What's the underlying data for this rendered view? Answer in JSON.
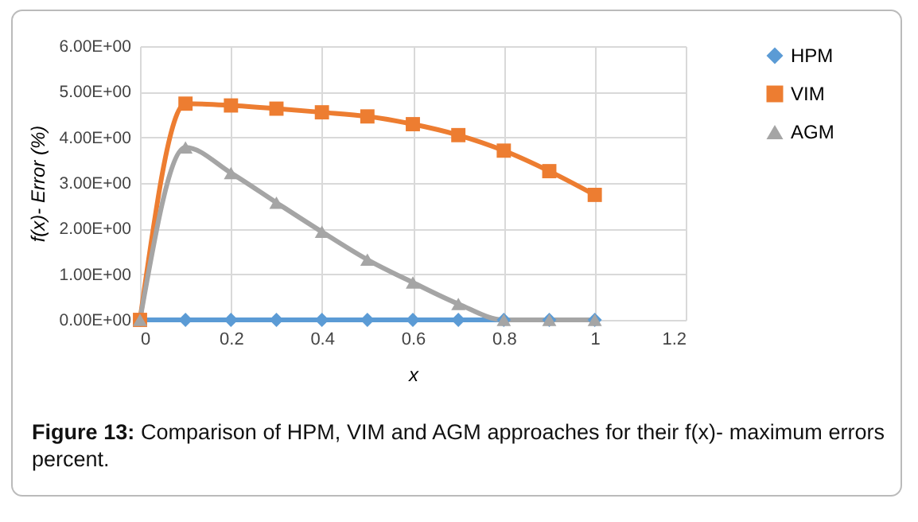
{
  "chart_data": {
    "type": "line",
    "ylabel": "f(x)- Error (%)",
    "xlabel": "x",
    "annotations": [
      "Figure 13: Comparison of HPM, VIM and AGM approaches for their f(x)- maximum errors percent."
    ],
    "x": [
      0,
      0.1,
      0.2,
      0.3,
      0.4,
      0.5,
      0.6,
      0.7,
      0.8,
      0.9,
      1
    ],
    "series": [
      {
        "name": "HPM",
        "color": "#5b9bd5",
        "marker": "diamond",
        "values": [
          0,
          0,
          0,
          0,
          0,
          0,
          0,
          0,
          0,
          0,
          0
        ]
      },
      {
        "name": "VIM",
        "color": "#ed7d31",
        "marker": "square",
        "values": [
          0,
          4.74,
          4.7,
          4.63,
          4.55,
          4.46,
          4.29,
          4.05,
          3.71,
          3.26,
          2.74
        ]
      },
      {
        "name": "AGM",
        "color": "#a5a5a5",
        "marker": "triangle",
        "values": [
          0,
          3.78,
          3.22,
          2.57,
          1.93,
          1.32,
          0.82,
          0.35,
          0,
          0,
          0
        ]
      }
    ],
    "xlim": [
      0,
      1.2
    ],
    "xticks": [
      0,
      0.2,
      0.4,
      0.6,
      0.8,
      1,
      1.2
    ],
    "ylim": [
      0,
      6
    ],
    "yticks": [
      {
        "value": 0,
        "label": "0.00E+00"
      },
      {
        "value": 1,
        "label": "1.00E+00"
      },
      {
        "value": 2,
        "label": "2.00E+00"
      },
      {
        "value": 3,
        "label": "3.00E+00"
      },
      {
        "value": 4,
        "label": "4.00E+00"
      },
      {
        "value": 5,
        "label": "5.00E+00"
      },
      {
        "value": 6,
        "label": "6.00E+00"
      }
    ],
    "grid": true,
    "legend": "right",
    "line_style": "solid"
  }
}
